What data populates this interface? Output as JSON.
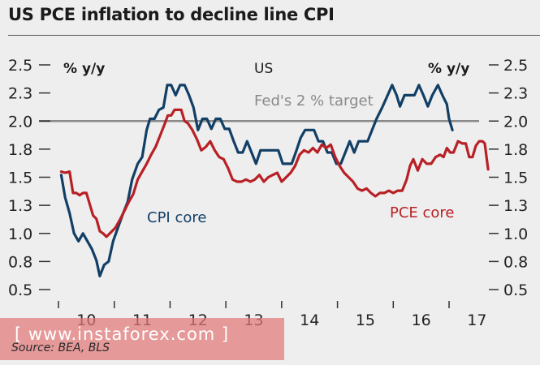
{
  "title": "US PCE inflation to decline line CPI",
  "source": "Source: BEA, BLS",
  "watermark": "[ www.instaforex.com ]",
  "chart_data": {
    "type": "line",
    "title": "US PCE inflation to decline line CPI",
    "subtitle": "US",
    "ylabel_left": "% y/y",
    "ylabel_right": "% y/y",
    "ylim": [
      0.5,
      2.5
    ],
    "yticks": [
      "2.5",
      "2.3",
      "2.0",
      "1.8",
      "1.5",
      "1.3",
      "1.0",
      "0.8",
      "0.5"
    ],
    "ytick_values": [
      2.5,
      2.25,
      2.0,
      1.75,
      1.5,
      1.25,
      1.0,
      0.75,
      0.5
    ],
    "xlim": [
      2009.5,
      2017.3
    ],
    "xticks": [
      "10",
      "11",
      "12",
      "13",
      "14",
      "15",
      "16",
      "17"
    ],
    "grid": false,
    "reference_line": {
      "label": "Fed's 2 % target",
      "value": 2.0,
      "color": "#8a8a8a"
    },
    "series": [
      {
        "name": "CPI core",
        "color": "#123f66",
        "points": [
          [
            2009.55,
            1.52
          ],
          [
            2009.62,
            1.32
          ],
          [
            2009.7,
            1.18
          ],
          [
            2009.78,
            1.0
          ],
          [
            2009.86,
            0.93
          ],
          [
            2009.94,
            1.0
          ],
          [
            2010.02,
            0.93
          ],
          [
            2010.1,
            0.86
          ],
          [
            2010.18,
            0.76
          ],
          [
            2010.24,
            0.62
          ],
          [
            2010.32,
            0.72
          ],
          [
            2010.4,
            0.75
          ],
          [
            2010.48,
            0.93
          ],
          [
            2010.58,
            1.07
          ],
          [
            2010.66,
            1.18
          ],
          [
            2010.74,
            1.28
          ],
          [
            2010.82,
            1.48
          ],
          [
            2010.92,
            1.62
          ],
          [
            2011.0,
            1.68
          ],
          [
            2011.08,
            1.92
          ],
          [
            2011.14,
            2.02
          ],
          [
            2011.22,
            2.02
          ],
          [
            2011.3,
            2.1
          ],
          [
            2011.38,
            2.12
          ],
          [
            2011.45,
            2.32
          ],
          [
            2011.52,
            2.32
          ],
          [
            2011.6,
            2.23
          ],
          [
            2011.68,
            2.32
          ],
          [
            2011.76,
            2.32
          ],
          [
            2011.84,
            2.23
          ],
          [
            2011.92,
            2.12
          ],
          [
            2012.0,
            1.92
          ],
          [
            2012.08,
            2.02
          ],
          [
            2012.16,
            2.02
          ],
          [
            2012.24,
            1.93
          ],
          [
            2012.32,
            2.02
          ],
          [
            2012.4,
            2.02
          ],
          [
            2012.48,
            1.93
          ],
          [
            2012.56,
            1.93
          ],
          [
            2012.64,
            1.82
          ],
          [
            2012.72,
            1.72
          ],
          [
            2012.8,
            1.72
          ],
          [
            2012.88,
            1.82
          ],
          [
            2012.96,
            1.72
          ],
          [
            2013.04,
            1.62
          ],
          [
            2013.12,
            1.74
          ],
          [
            2013.2,
            1.74
          ],
          [
            2013.28,
            1.74
          ],
          [
            2013.36,
            1.74
          ],
          [
            2013.44,
            1.74
          ],
          [
            2013.52,
            1.62
          ],
          [
            2013.6,
            1.62
          ],
          [
            2013.68,
            1.62
          ],
          [
            2013.76,
            1.73
          ],
          [
            2013.84,
            1.85
          ],
          [
            2013.92,
            1.92
          ],
          [
            2014.0,
            1.92
          ],
          [
            2014.08,
            1.92
          ],
          [
            2014.16,
            1.82
          ],
          [
            2014.24,
            1.82
          ],
          [
            2014.32,
            1.72
          ],
          [
            2014.4,
            1.72
          ],
          [
            2014.48,
            1.62
          ],
          [
            2014.56,
            1.62
          ],
          [
            2014.64,
            1.72
          ],
          [
            2014.72,
            1.82
          ],
          [
            2014.8,
            1.72
          ],
          [
            2014.88,
            1.82
          ],
          [
            2014.96,
            1.82
          ],
          [
            2015.04,
            1.82
          ],
          [
            2015.12,
            1.92
          ],
          [
            2015.2,
            2.02
          ],
          [
            2015.3,
            2.12
          ],
          [
            2015.4,
            2.23
          ],
          [
            2015.48,
            2.32
          ],
          [
            2015.56,
            2.23
          ],
          [
            2015.62,
            2.13
          ],
          [
            2015.7,
            2.23
          ],
          [
            2015.8,
            2.23
          ],
          [
            2015.88,
            2.23
          ],
          [
            2015.96,
            2.32
          ],
          [
            2016.04,
            2.23
          ],
          [
            2016.12,
            2.13
          ],
          [
            2016.2,
            2.23
          ],
          [
            2016.3,
            2.32
          ],
          [
            2016.38,
            2.23
          ],
          [
            2016.46,
            2.15
          ],
          [
            2016.5,
            2.02
          ],
          [
            2016.56,
            1.92
          ]
        ]
      },
      {
        "name": "PCE core",
        "color": "#b82025",
        "points": [
          [
            2009.55,
            1.55
          ],
          [
            2009.62,
            1.54
          ],
          [
            2009.7,
            1.55
          ],
          [
            2009.76,
            1.36
          ],
          [
            2009.82,
            1.36
          ],
          [
            2009.88,
            1.34
          ],
          [
            2009.94,
            1.36
          ],
          [
            2010.0,
            1.36
          ],
          [
            2010.06,
            1.26
          ],
          [
            2010.12,
            1.16
          ],
          [
            2010.18,
            1.13
          ],
          [
            2010.24,
            1.02
          ],
          [
            2010.3,
            1.0
          ],
          [
            2010.36,
            0.97
          ],
          [
            2010.44,
            1.01
          ],
          [
            2010.52,
            1.05
          ],
          [
            2010.6,
            1.12
          ],
          [
            2010.68,
            1.2
          ],
          [
            2010.76,
            1.28
          ],
          [
            2010.84,
            1.35
          ],
          [
            2010.92,
            1.48
          ],
          [
            2011.0,
            1.55
          ],
          [
            2011.08,
            1.62
          ],
          [
            2011.16,
            1.7
          ],
          [
            2011.24,
            1.77
          ],
          [
            2011.32,
            1.87
          ],
          [
            2011.4,
            1.97
          ],
          [
            2011.46,
            2.05
          ],
          [
            2011.52,
            2.05
          ],
          [
            2011.58,
            2.1
          ],
          [
            2011.64,
            2.1
          ],
          [
            2011.7,
            2.1
          ],
          [
            2011.76,
            2.0
          ],
          [
            2011.82,
            1.98
          ],
          [
            2011.9,
            1.92
          ],
          [
            2011.98,
            1.84
          ],
          [
            2012.06,
            1.74
          ],
          [
            2012.14,
            1.77
          ],
          [
            2012.22,
            1.82
          ],
          [
            2012.3,
            1.74
          ],
          [
            2012.38,
            1.68
          ],
          [
            2012.46,
            1.66
          ],
          [
            2012.54,
            1.58
          ],
          [
            2012.62,
            1.48
          ],
          [
            2012.7,
            1.46
          ],
          [
            2012.78,
            1.46
          ],
          [
            2012.86,
            1.48
          ],
          [
            2012.94,
            1.46
          ],
          [
            2013.02,
            1.48
          ],
          [
            2013.1,
            1.52
          ],
          [
            2013.18,
            1.46
          ],
          [
            2013.26,
            1.5
          ],
          [
            2013.34,
            1.52
          ],
          [
            2013.42,
            1.54
          ],
          [
            2013.5,
            1.46
          ],
          [
            2013.58,
            1.5
          ],
          [
            2013.66,
            1.54
          ],
          [
            2013.74,
            1.6
          ],
          [
            2013.82,
            1.7
          ],
          [
            2013.9,
            1.74
          ],
          [
            2013.98,
            1.72
          ],
          [
            2014.06,
            1.76
          ],
          [
            2014.14,
            1.72
          ],
          [
            2014.22,
            1.79
          ],
          [
            2014.3,
            1.76
          ],
          [
            2014.38,
            1.79
          ],
          [
            2014.46,
            1.68
          ],
          [
            2014.54,
            1.6
          ],
          [
            2014.62,
            1.54
          ],
          [
            2014.7,
            1.5
          ],
          [
            2014.78,
            1.46
          ],
          [
            2014.86,
            1.4
          ],
          [
            2014.94,
            1.38
          ],
          [
            2015.02,
            1.4
          ],
          [
            2015.1,
            1.36
          ],
          [
            2015.18,
            1.33
          ],
          [
            2015.26,
            1.36
          ],
          [
            2015.34,
            1.36
          ],
          [
            2015.42,
            1.38
          ],
          [
            2015.5,
            1.36
          ],
          [
            2015.58,
            1.38
          ],
          [
            2015.66,
            1.38
          ],
          [
            2015.74,
            1.48
          ],
          [
            2015.8,
            1.6
          ],
          [
            2015.86,
            1.66
          ],
          [
            2015.94,
            1.56
          ],
          [
            2016.02,
            1.66
          ],
          [
            2016.1,
            1.62
          ],
          [
            2016.18,
            1.62
          ],
          [
            2016.26,
            1.68
          ],
          [
            2016.34,
            1.7
          ],
          [
            2016.4,
            1.68
          ],
          [
            2016.46,
            1.76
          ],
          [
            2016.52,
            1.72
          ],
          [
            2016.58,
            1.72
          ],
          [
            2016.66,
            1.82
          ],
          [
            2016.74,
            1.8
          ],
          [
            2016.8,
            1.8
          ],
          [
            2016.86,
            1.68
          ],
          [
            2016.92,
            1.68
          ],
          [
            2016.98,
            1.78
          ],
          [
            2017.04,
            1.82
          ],
          [
            2017.1,
            1.82
          ],
          [
            2017.14,
            1.8
          ],
          [
            2017.2,
            1.57
          ]
        ]
      }
    ],
    "annotations": [
      {
        "text": "CPI core",
        "series": "CPI core"
      },
      {
        "text": "PCE core",
        "series": "PCE core"
      }
    ]
  }
}
